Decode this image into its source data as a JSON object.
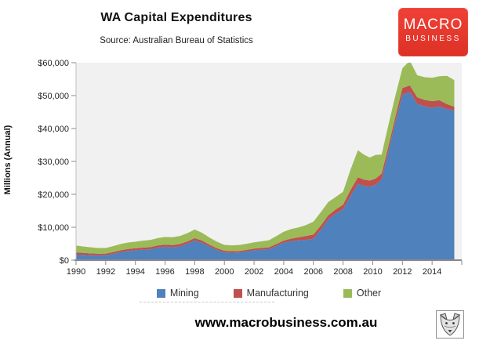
{
  "header": {
    "title": "WA Capital Expenditures",
    "subtitle": "Source: Australian Bureau of Statistics",
    "logo": {
      "line1": "MACRO",
      "line2": "BUSINESS",
      "bg_color": "#e53a2e",
      "text_color": "#ffffff"
    }
  },
  "footer": {
    "url": "www.macrobusiness.com.au",
    "logo_icon": "wolf-icon"
  },
  "chart_data": {
    "type": "area",
    "stacked": true,
    "title": "WA Capital Expenditures",
    "ylabel": "Millions (Annual)",
    "xlabel": "",
    "grid": false,
    "plot_bg": "#f1f1f1",
    "axis_color": "#898989",
    "left_axis_color": "#c0c0c0",
    "legend_position": "bottom",
    "ylim": [
      0,
      60000
    ],
    "x_range": [
      1990,
      2016
    ],
    "y_ticks": [
      0,
      10000,
      20000,
      30000,
      40000,
      50000,
      60000
    ],
    "y_tick_labels": [
      "$0",
      "$10,000",
      "$20,000",
      "$30,000",
      "$40,000",
      "$50,000",
      "$60,000"
    ],
    "x_tick_years": [
      1990,
      1992,
      1994,
      1996,
      1998,
      2000,
      2002,
      2004,
      2006,
      2008,
      2010,
      2012,
      2014,
      2016
    ],
    "x_tick_labels": [
      "1990",
      "1992",
      "1994",
      "1996",
      "1998",
      "2000",
      "2002",
      "2004",
      "2006",
      "2008",
      "2010",
      "2012",
      "2014"
    ],
    "x": [
      1990,
      1990.5,
      1991,
      1991.5,
      1992,
      1992.5,
      1993,
      1993.5,
      1994,
      1994.5,
      1995,
      1995.5,
      1996,
      1996.5,
      1997,
      1997.5,
      1998,
      1998.5,
      1999,
      1999.5,
      2000,
      2000.5,
      2001,
      2001.5,
      2002,
      2002.5,
      2003,
      2003.5,
      2004,
      2004.5,
      2005,
      2005.5,
      2006,
      2006.5,
      2007,
      2007.5,
      2008,
      2008.5,
      2009,
      2009.4,
      2009.8,
      2010.2,
      2010.6,
      2011,
      2011.5,
      2012,
      2012.5,
      2013,
      2013.5,
      2014,
      2014.5,
      2015,
      2015.5
    ],
    "series": [
      {
        "name": "Mining",
        "color": "#4f81bd",
        "values": [
          1700,
          1600,
          1500,
          1450,
          1500,
          1900,
          2400,
          2800,
          3000,
          3200,
          3300,
          3800,
          4100,
          3900,
          4200,
          5000,
          6000,
          5300,
          4100,
          3100,
          2350,
          2250,
          2350,
          2650,
          3000,
          3200,
          3350,
          4300,
          5300,
          5800,
          6000,
          6200,
          6500,
          9200,
          12400,
          14100,
          15500,
          19500,
          23200,
          22600,
          22300,
          22900,
          24500,
          32000,
          41500,
          50300,
          51100,
          47500,
          46700,
          46300,
          46700,
          45900,
          45500
        ]
      },
      {
        "name": "Manufacturing",
        "color": "#c0504d",
        "values": [
          650,
          600,
          550,
          500,
          500,
          550,
          600,
          600,
          600,
          620,
          650,
          650,
          650,
          680,
          700,
          700,
          700,
          650,
          600,
          550,
          500,
          480,
          460,
          470,
          500,
          520,
          550,
          600,
          650,
          750,
          950,
          1150,
          1300,
          1300,
          1250,
          1300,
          1350,
          1800,
          2000,
          1900,
          1900,
          1900,
          1800,
          1600,
          1600,
          2000,
          2000,
          2000,
          2000,
          2000,
          1900,
          1500,
          1100
        ]
      },
      {
        "name": "Other",
        "color": "#9bbb59",
        "values": [
          2100,
          1950,
          1850,
          1750,
          1700,
          1800,
          1900,
          1950,
          2000,
          2100,
          2200,
          2250,
          2300,
          2400,
          2450,
          2500,
          2600,
          2350,
          2150,
          1950,
          1800,
          1780,
          1800,
          1850,
          1900,
          2000,
          2150,
          2400,
          2700,
          2900,
          3000,
          3300,
          3900,
          4100,
          4000,
          3800,
          3900,
          6200,
          8200,
          7600,
          7000,
          7200,
          5800,
          6400,
          6400,
          6000,
          7500,
          6700,
          6900,
          7100,
          7300,
          8600,
          8100
        ]
      }
    ]
  }
}
